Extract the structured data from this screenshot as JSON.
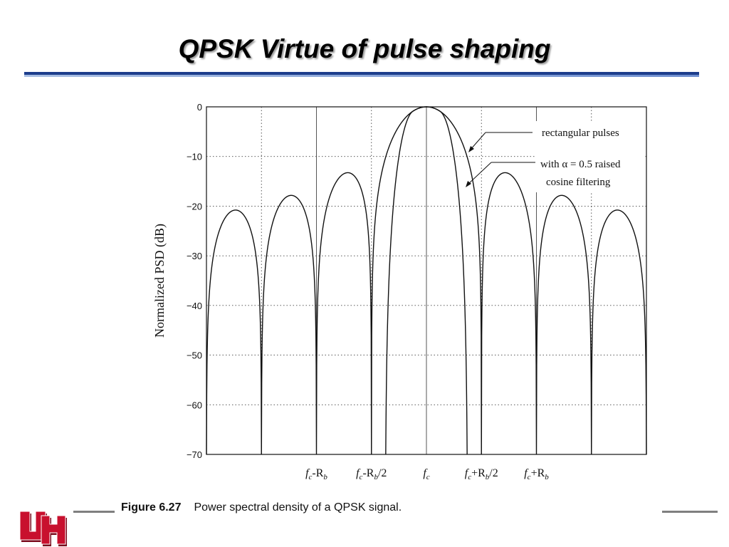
{
  "slide": {
    "title": "QPSK Virtue of pulse shaping"
  },
  "caption": {
    "figure_label": "Figure 6.27",
    "text": "Power spectral density of a QPSK signal."
  },
  "colors": {
    "title_rule_dark": "#1c3d8c",
    "title_rule_light": "#8aa6dd",
    "logo_red": "#c8102e",
    "grid": "#555555",
    "curve": "#111111"
  },
  "logo": {
    "name": "UH"
  },
  "chart_data": {
    "type": "line",
    "ylabel": "Normalized PSD (dB)",
    "xlabel": "",
    "ylim": [
      -70,
      0
    ],
    "yticks": [
      0,
      -10,
      -20,
      -30,
      -40,
      -50,
      -60,
      -70
    ],
    "x_tick_labels": [
      {
        "x": -1.0,
        "base": "f",
        "sub": "c",
        "rest": "-R",
        "restsub": "b",
        "tail": ""
      },
      {
        "x": -0.5,
        "base": "f",
        "sub": "c",
        "rest": "-R",
        "restsub": "b",
        "tail": "/2"
      },
      {
        "x": 0.0,
        "base": "f",
        "sub": "c",
        "rest": "",
        "restsub": "",
        "tail": ""
      },
      {
        "x": 0.5,
        "base": "f",
        "sub": "c",
        "rest": "+R",
        "restsub": "b",
        "tail": "/2"
      },
      {
        "x": 1.0,
        "base": "f",
        "sub": "c",
        "rest": "+R",
        "restsub": "b",
        "tail": ""
      }
    ],
    "x_unit": "R_b offset from f_c",
    "xlim": [
      -2.0,
      2.0
    ],
    "grid": true,
    "annotations": [
      {
        "text": "rectangular pulses"
      },
      {
        "text": "with α = 0.5 raised"
      },
      {
        "text": "cosine filtering"
      }
    ],
    "series": [
      {
        "name": "rectangular pulses",
        "description_points": {
          "main_lobe_peak": [
            0.0,
            0.0
          ],
          "nulls": [
            -2.0,
            -1.5,
            -1.0,
            -0.5,
            0.5,
            1.0,
            1.5,
            2.0
          ],
          "sidelobe_peaks": [
            [
              -1.75,
              -21
            ],
            [
              -1.25,
              -18
            ],
            [
              -0.75,
              -13.5
            ],
            [
              0.75,
              -13.5
            ],
            [
              1.25,
              -18
            ],
            [
              1.75,
              -21
            ]
          ]
        }
      },
      {
        "name": "with α = 0.5 raised cosine filtering",
        "description_points": {
          "flat_top_until": 0.25,
          "band_edge": 0.375,
          "level_at_band_edge": -70
        }
      }
    ]
  }
}
